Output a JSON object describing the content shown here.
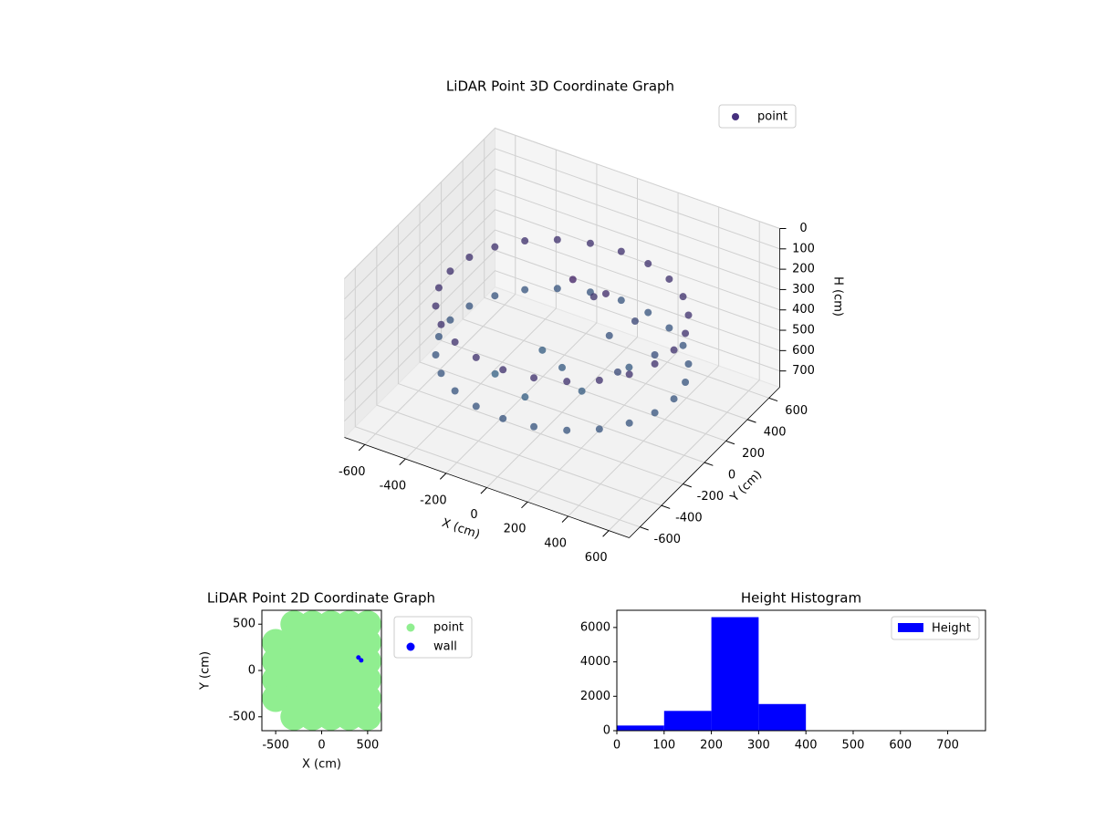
{
  "chart_data": [
    {
      "type": "scatter3d",
      "title": "LiDAR Point 3D Coordinate Graph",
      "xlabel": "X (cm)",
      "ylabel": "Y (cm)",
      "zlabel": "H (cm)",
      "xlim": [
        -700,
        700
      ],
      "ylim": [
        -700,
        700
      ],
      "zlim": [
        0,
        780
      ],
      "z_inverted": true,
      "xticks": [
        -600,
        -400,
        -200,
        0,
        200,
        400,
        600
      ],
      "yticks": [
        -600,
        -400,
        -200,
        0,
        200,
        400,
        600
      ],
      "zticks": [
        0,
        100,
        200,
        300,
        400,
        500,
        600,
        700
      ],
      "grid": true,
      "legend": "upper right",
      "colormap": [
        "#440154",
        "#2a788e"
      ],
      "series": [
        {
          "name": "point",
          "color": "#46307e",
          "x": [
            550,
            531,
            476,
            389,
            275,
            142,
            0,
            -142,
            -275,
            -389,
            -476,
            -531,
            -550,
            -531,
            -476,
            -389,
            -275,
            -142,
            0,
            142,
            275,
            389,
            476,
            531,
            550,
            531,
            476,
            389,
            275,
            142,
            0,
            -142,
            -275,
            -389,
            -476,
            -531,
            -550,
            -531,
            -476,
            -389,
            -275,
            -142,
            0,
            142,
            275,
            389,
            476,
            531,
            0,
            -150,
            150,
            -250,
            250,
            100,
            300,
            -50,
            200,
            350,
            50,
            120,
            0
          ],
          "y": [
            0,
            142,
            275,
            389,
            476,
            531,
            550,
            531,
            476,
            389,
            275,
            142,
            0,
            -142,
            -275,
            -389,
            -476,
            -531,
            -550,
            -531,
            -476,
            -389,
            -275,
            -142,
            0,
            142,
            275,
            389,
            476,
            531,
            550,
            531,
            476,
            389,
            275,
            142,
            0,
            -142,
            -275,
            -389,
            -476,
            -531,
            -550,
            -531,
            -476,
            -389,
            -275,
            -142,
            0,
            100,
            -100,
            -150,
            150,
            250,
            -50,
            -250,
            300,
            200,
            200,
            180,
            100
          ],
          "z": [
            280,
            280,
            280,
            280,
            280,
            280,
            280,
            280,
            280,
            280,
            280,
            280,
            280,
            280,
            280,
            280,
            280,
            280,
            280,
            280,
            280,
            280,
            280,
            280,
            520,
            520,
            520,
            520,
            520,
            520,
            520,
            520,
            520,
            520,
            520,
            520,
            520,
            520,
            520,
            520,
            520,
            520,
            520,
            520,
            520,
            520,
            520,
            520,
            560,
            580,
            570,
            600,
            550,
            500,
            450,
            590,
            420,
            480,
            300,
            250,
            180
          ]
        }
      ]
    },
    {
      "type": "scatter",
      "title": "LiDAR Point 2D Coordinate Graph",
      "xlabel": "X (cm)",
      "ylabel": "Y (cm)",
      "xlim": [
        -650,
        650
      ],
      "ylim": [
        -650,
        650
      ],
      "xticks": [
        -500,
        0,
        500
      ],
      "yticks": [
        -500,
        0,
        500
      ],
      "legend": "outside upper right",
      "series": [
        {
          "name": "point",
          "color": "#90ee90",
          "x": [
            -300,
            -100,
            100,
            300,
            500,
            -500,
            -300,
            -100,
            100,
            300,
            500,
            -500,
            -300,
            -100,
            100,
            300,
            500,
            -500,
            -300,
            -100,
            100,
            300,
            500,
            -500,
            -300,
            -100,
            100,
            300,
            500,
            -300,
            -100,
            100,
            300,
            500
          ],
          "y": [
            500,
            500,
            500,
            500,
            500,
            300,
            300,
            300,
            300,
            300,
            300,
            100,
            100,
            100,
            100,
            100,
            100,
            -100,
            -100,
            -100,
            -100,
            -100,
            -100,
            -300,
            -300,
            -300,
            -300,
            -300,
            -300,
            -500,
            -500,
            -500,
            -500,
            -500
          ]
        },
        {
          "name": "wall",
          "color": "#0000ff",
          "x": [
            400,
            430
          ],
          "y": [
            140,
            110
          ]
        }
      ]
    },
    {
      "type": "histogram",
      "title": "Height Histogram",
      "xlim": [
        0,
        780
      ],
      "ylim": [
        0,
        7000
      ],
      "xticks": [
        0,
        100,
        200,
        300,
        400,
        500,
        600,
        700
      ],
      "yticks": [
        0,
        2000,
        4000,
        6000
      ],
      "legend": "upper right",
      "bins": [
        0,
        100,
        200,
        300,
        400,
        500,
        600,
        700,
        800
      ],
      "series": [
        {
          "name": "Height",
          "color": "#0000ff",
          "values": [
            300,
            1150,
            6600,
            1550,
            0,
            0,
            0,
            0
          ]
        }
      ]
    }
  ]
}
